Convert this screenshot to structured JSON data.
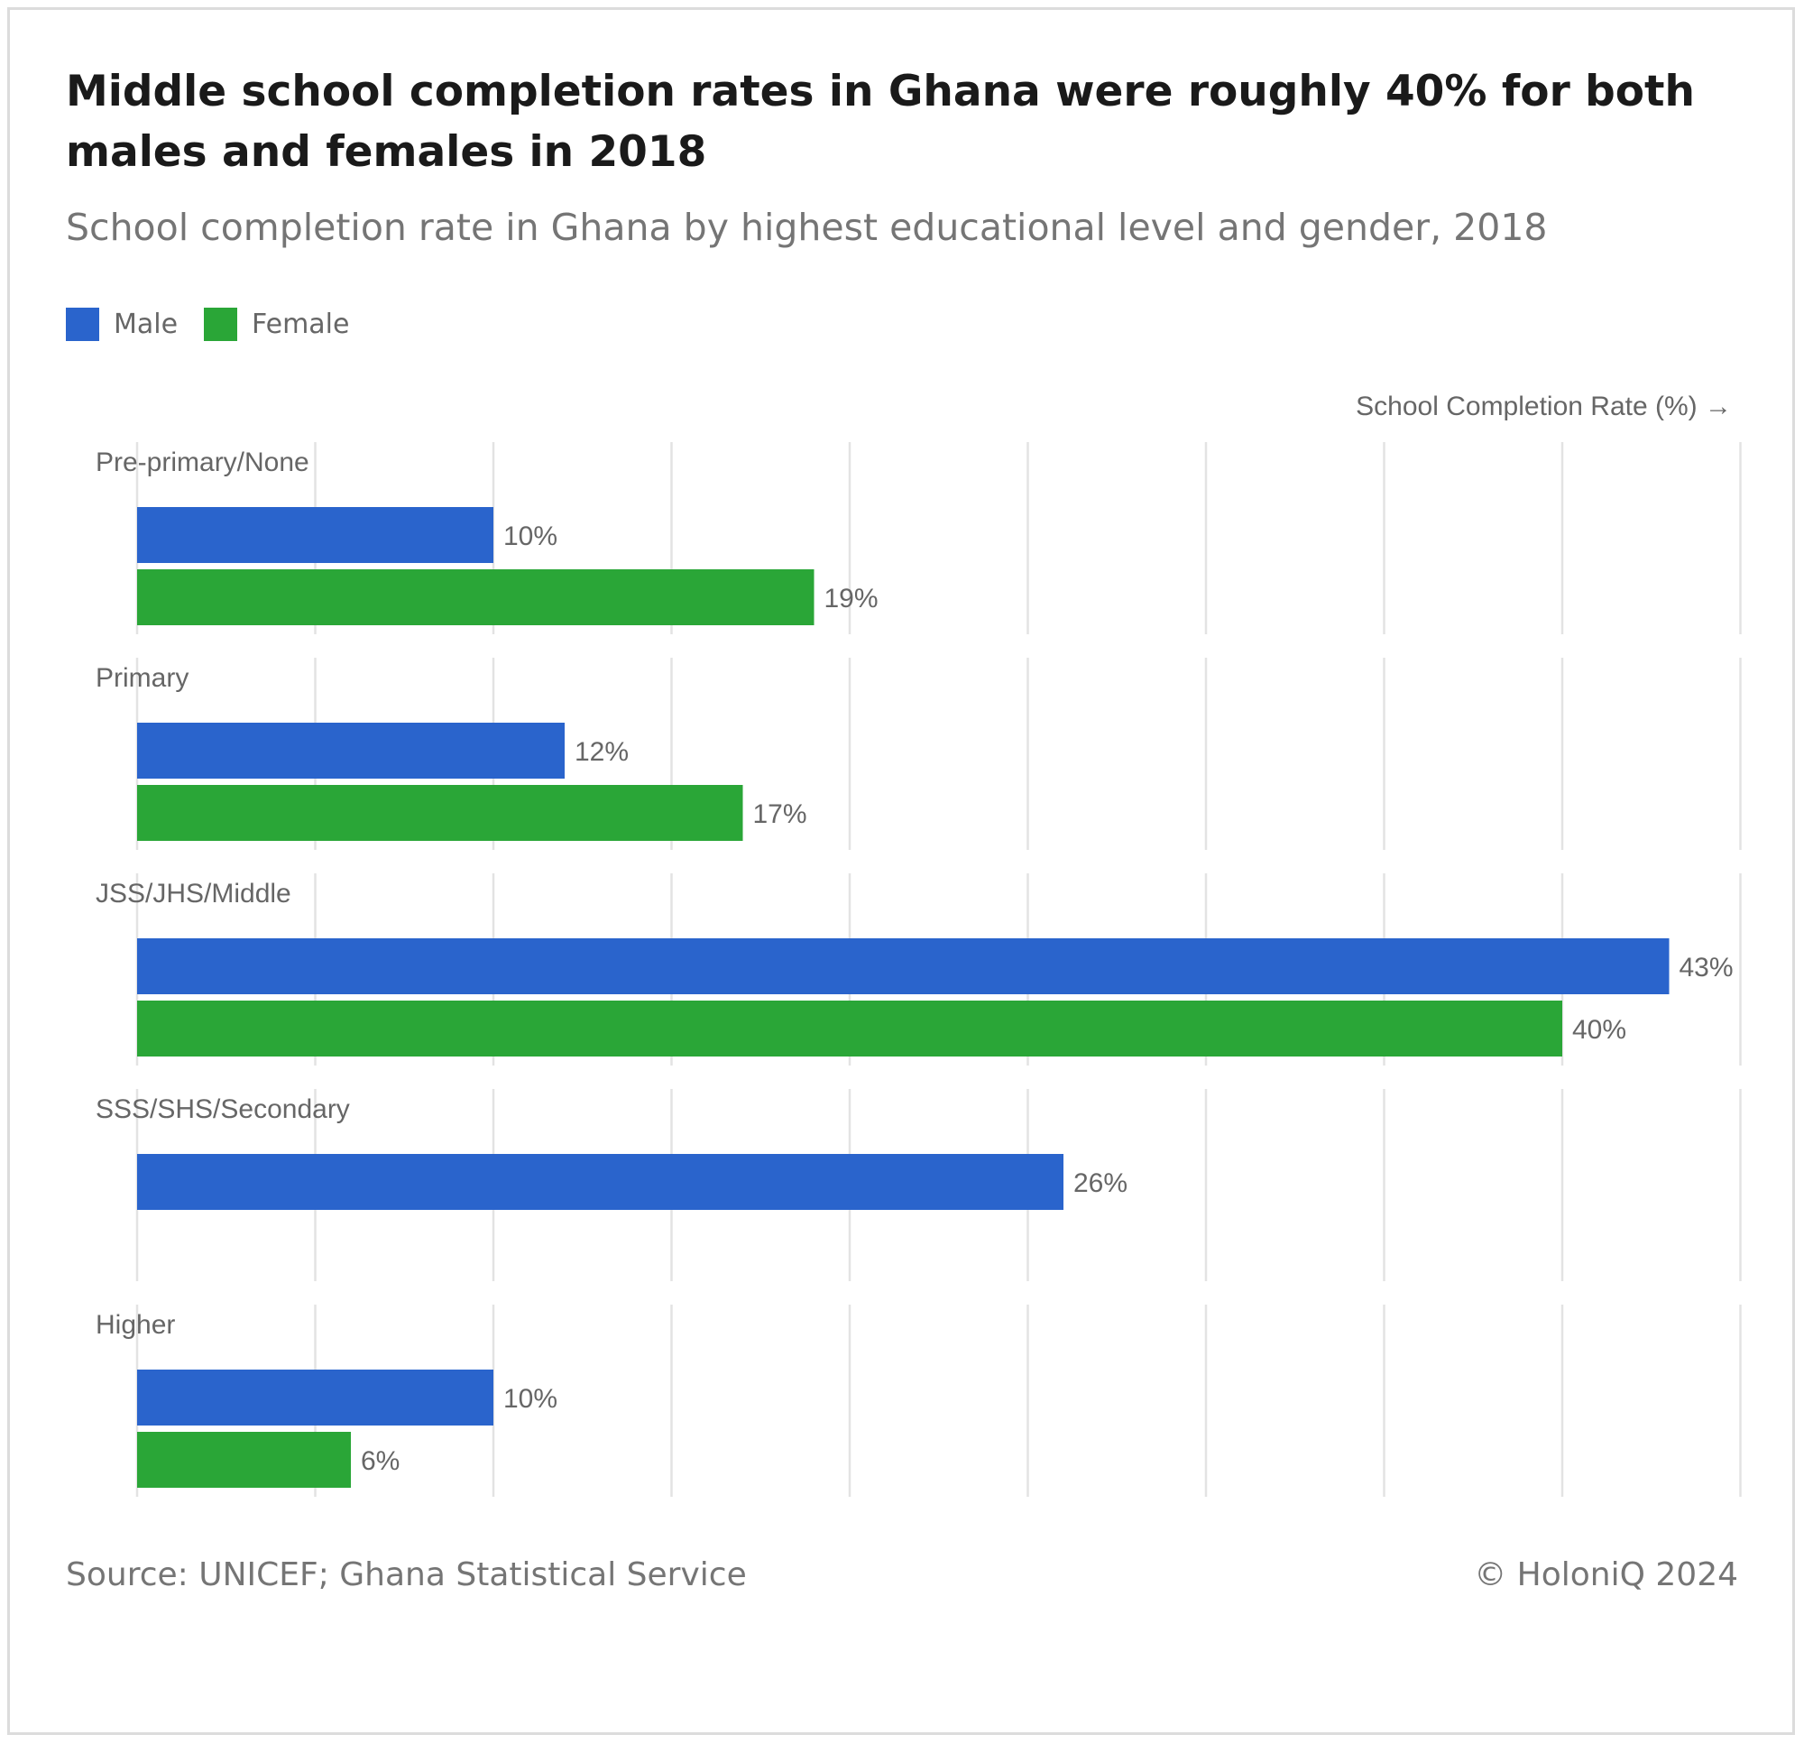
{
  "title": "Middle school completion rates in Ghana were roughly 40% for both males and females in 2018",
  "subtitle": "School completion rate in Ghana by highest educational level and gender, 2018",
  "footer": {
    "source": "Source: UNICEF; Ghana Statistical Service",
    "copyright": "© HoloniQ 2024"
  },
  "colors": {
    "male": "#2a64cc",
    "female": "#2aa637",
    "grid": "#e3e3e3",
    "text": "#666666"
  },
  "chart_data": {
    "type": "bar",
    "orientation": "horizontal",
    "categories": [
      "Pre-primary/None",
      "Primary",
      "JSS/JHS/Middle",
      "SSS/SHS/Secondary",
      "Higher"
    ],
    "series": [
      {
        "name": "Male",
        "color": "#2a64cc",
        "values": [
          10,
          12,
          43,
          26,
          10
        ]
      },
      {
        "name": "Female",
        "color": "#2aa637",
        "values": [
          19,
          17,
          40,
          null,
          6
        ]
      }
    ],
    "value_labels": {
      "Male": [
        "10%",
        "12%",
        "43%",
        "26%",
        "10%"
      ],
      "Female": [
        "19%",
        "17%",
        "40%",
        "",
        "6%"
      ]
    },
    "xlabel": "School Completion Rate (%) →",
    "ylabel": "",
    "xlim": [
      0,
      45
    ],
    "grid_step": 5,
    "grid": true,
    "legend": {
      "position": "top-left",
      "entries": [
        "Male",
        "Female"
      ]
    }
  }
}
